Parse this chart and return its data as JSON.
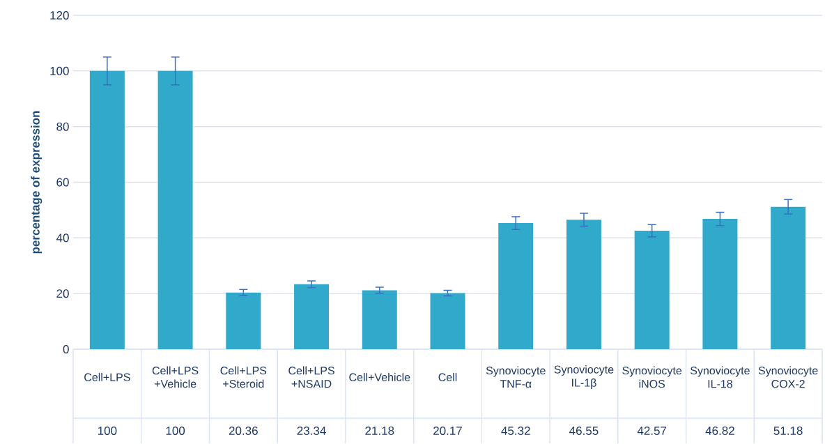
{
  "chart_data": {
    "type": "bar",
    "ylabel": "percentage of expression",
    "categories": [
      "Cell+LPS",
      "Cell+LPS +Vehicle",
      "Cell+LPS +Steroid",
      "Cell+LPS +NSAID",
      "Cell+Vehicle",
      "Cell",
      "Synoviocyte TNF-α",
      "Synoviocyte IL-1β",
      "Synoviocyte iNOS",
      "Synoviocyte IL-18",
      "Synoviocyte COX-2"
    ],
    "values": [
      100,
      100,
      20.36,
      23.34,
      21.18,
      20.17,
      45.32,
      46.55,
      42.57,
      46.82,
      51.18
    ],
    "value_labels": [
      "100",
      "100",
      "20.36",
      "23.34",
      "21.18",
      "20.17",
      "45.32",
      "46.55",
      "42.57",
      "46.82",
      "51.18"
    ],
    "errors": [
      5,
      5,
      1.1,
      1.2,
      1.1,
      1.0,
      2.3,
      2.3,
      2.2,
      2.4,
      2.6
    ],
    "color": "#31a9cb",
    "ylim": [
      0,
      120
    ],
    "yticks": [
      0,
      20,
      40,
      60,
      80,
      100,
      120
    ],
    "grid": "y"
  }
}
